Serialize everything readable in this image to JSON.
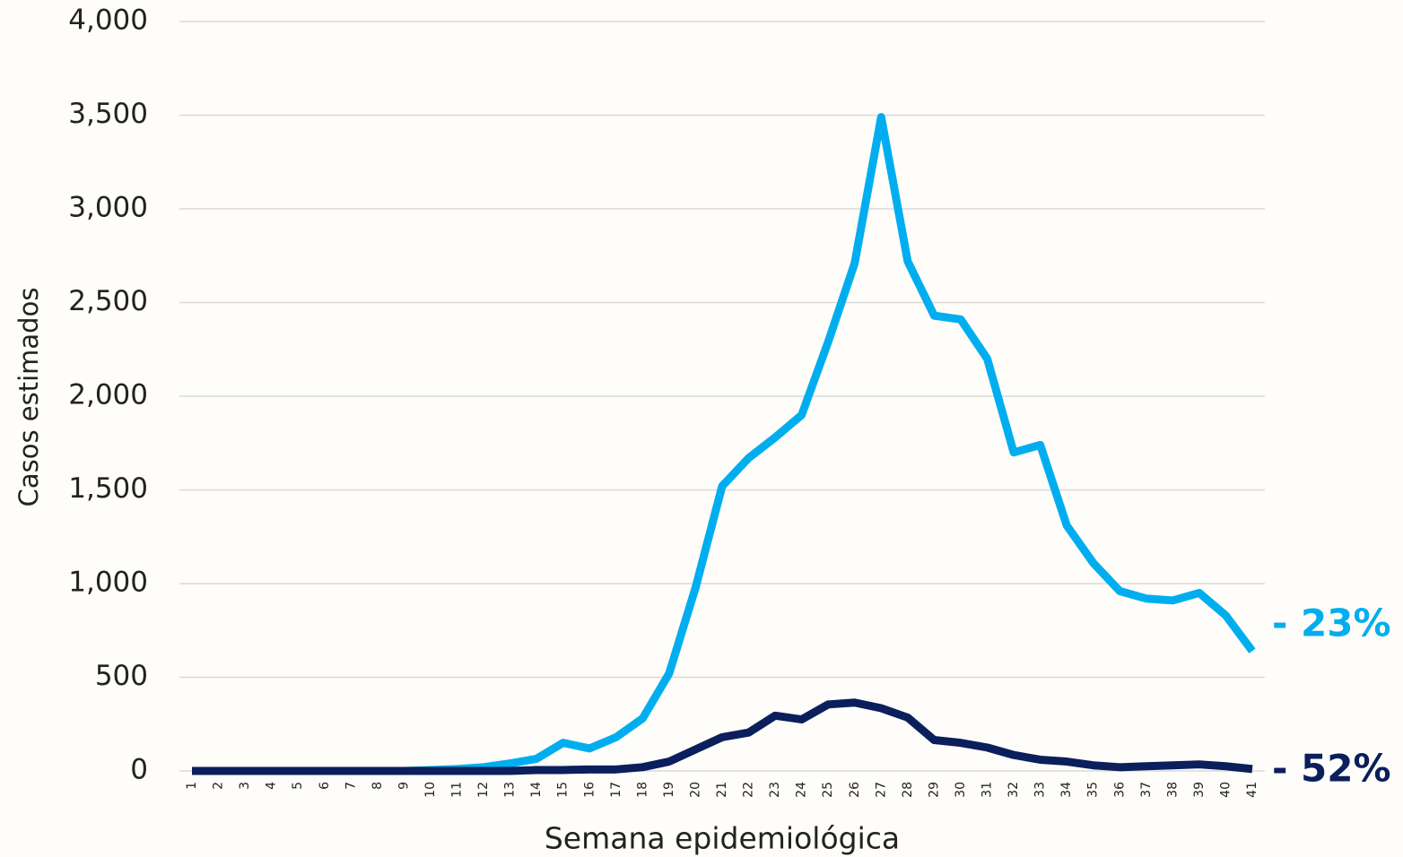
{
  "chart_data": {
    "type": "line",
    "x_label": "Semana epidemiológica",
    "y_label": "Casos estimados",
    "categories": [
      "1",
      "2",
      "3",
      "4",
      "5",
      "6",
      "7",
      "8",
      "9",
      "10",
      "11",
      "12",
      "13",
      "14",
      "15",
      "16",
      "17",
      "18",
      "19",
      "20",
      "21",
      "22",
      "23",
      "24",
      "25",
      "26",
      "27",
      "28",
      "29",
      "30",
      "31",
      "32",
      "33",
      "34",
      "35",
      "36",
      "37",
      "38",
      "39",
      "40",
      "41"
    ],
    "series": [
      {
        "color": "#00aeef",
        "values": [
          0,
          0,
          0,
          0,
          0,
          0,
          0,
          0,
          0,
          5,
          10,
          20,
          40,
          65,
          150,
          120,
          180,
          280,
          520,
          980,
          1520,
          1670,
          1780,
          1900,
          2290,
          2710,
          3490,
          2720,
          2430,
          2410,
          2200,
          1700,
          1740,
          1310,
          1110,
          960,
          920,
          910,
          950,
          830,
          640
        ]
      },
      {
        "color": "#0a1f5c",
        "values": [
          0,
          0,
          0,
          0,
          0,
          0,
          0,
          0,
          0,
          0,
          0,
          0,
          0,
          5,
          5,
          8,
          8,
          20,
          50,
          115,
          180,
          205,
          295,
          275,
          355,
          365,
          335,
          285,
          165,
          150,
          125,
          85,
          60,
          50,
          30,
          20,
          25,
          30,
          35,
          25,
          10
        ]
      }
    ],
    "annotations": [
      "- 23%",
      "- 52%"
    ],
    "ylim": [
      0,
      4000
    ],
    "yticks": [
      0,
      500,
      {
        "value": 1000,
        "label": "1,000"
      },
      {
        "value": 1500,
        "label": "1,500"
      },
      {
        "value": 2000,
        "label": "2,000"
      },
      {
        "value": 2500,
        "label": "2,500"
      },
      {
        "value": 3000,
        "label": "3,000"
      },
      {
        "value": 3500,
        "label": "3,500"
      },
      {
        "value": 4000,
        "label": "4,000"
      }
    ],
    "grid": true
  }
}
